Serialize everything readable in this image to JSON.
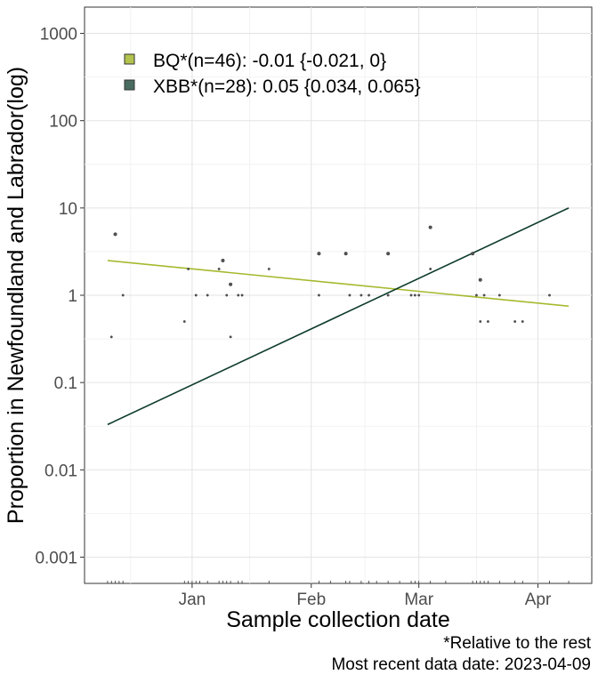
{
  "chart_data": {
    "type": "scatter",
    "title": "",
    "xlabel": "Sample collection date",
    "ylabel": "Proportion in Newfoundland and Labrador(log)",
    "y_scale": "log",
    "ylim": [
      0.0005,
      2000
    ],
    "xlim": [
      "2022-12-04",
      "2023-04-15"
    ],
    "x_ticks": [
      {
        "date": "2023-01-01",
        "label": "Jan"
      },
      {
        "date": "2023-02-01",
        "label": "Feb"
      },
      {
        "date": "2023-03-01",
        "label": "Mar"
      },
      {
        "date": "2023-04-01",
        "label": "Apr"
      }
    ],
    "y_ticks": [
      {
        "value": 0.001,
        "label": "0.001"
      },
      {
        "value": 0.01,
        "label": "0.01"
      },
      {
        "value": 0.1,
        "label": "0.1"
      },
      {
        "value": 1,
        "label": "1"
      },
      {
        "value": 10,
        "label": "10"
      },
      {
        "value": 100,
        "label": "100"
      },
      {
        "value": 1000,
        "label": "1000"
      }
    ],
    "grid": true,
    "legend_position": "top-left",
    "series": [
      {
        "name": "BQ*(n=46): -0.01 {-0.021, 0}",
        "color": "#a6b92e",
        "fit_line": [
          {
            "x": "2022-12-10",
            "y": 2.5
          },
          {
            "x": "2023-04-09",
            "y": 0.75
          }
        ]
      },
      {
        "name": "XBB*(n=28): 0.05 {0.034, 0.065}",
        "color": "#0d3b2c",
        "fit_line": [
          {
            "x": "2022-12-10",
            "y": 0.033
          },
          {
            "x": "2023-04-09",
            "y": 10
          }
        ]
      }
    ],
    "points": [
      {
        "x": "2022-12-11",
        "y": 0.333
      },
      {
        "x": "2022-12-12",
        "y": 5
      },
      {
        "x": "2022-12-14",
        "y": 1
      },
      {
        "x": "2022-12-30",
        "y": 0.5
      },
      {
        "x": "2022-12-31",
        "y": 2
      },
      {
        "x": "2023-01-02",
        "y": 1
      },
      {
        "x": "2023-01-05",
        "y": 1
      },
      {
        "x": "2023-01-08",
        "y": 2
      },
      {
        "x": "2023-01-09",
        "y": 2.5
      },
      {
        "x": "2023-01-10",
        "y": 1
      },
      {
        "x": "2023-01-11",
        "y": 0.333
      },
      {
        "x": "2023-01-11",
        "y": 1.333
      },
      {
        "x": "2023-01-13",
        "y": 1
      },
      {
        "x": "2023-01-14",
        "y": 1
      },
      {
        "x": "2023-01-21",
        "y": 2
      },
      {
        "x": "2023-02-03",
        "y": 3
      },
      {
        "x": "2023-02-03",
        "y": 1
      },
      {
        "x": "2023-02-10",
        "y": 3
      },
      {
        "x": "2023-02-11",
        "y": 1
      },
      {
        "x": "2023-02-14",
        "y": 1
      },
      {
        "x": "2023-02-16",
        "y": 1
      },
      {
        "x": "2023-02-21",
        "y": 3
      },
      {
        "x": "2023-02-21",
        "y": 1
      },
      {
        "x": "2023-02-27",
        "y": 1
      },
      {
        "x": "2023-02-28",
        "y": 1
      },
      {
        "x": "2023-03-01",
        "y": 1
      },
      {
        "x": "2023-03-04",
        "y": 6
      },
      {
        "x": "2023-03-04",
        "y": 2
      },
      {
        "x": "2023-03-15",
        "y": 3
      },
      {
        "x": "2023-03-16",
        "y": 1
      },
      {
        "x": "2023-03-17",
        "y": 1.5
      },
      {
        "x": "2023-03-17",
        "y": 0.5
      },
      {
        "x": "2023-03-18",
        "y": 1
      },
      {
        "x": "2023-03-19",
        "y": 0.5
      },
      {
        "x": "2023-03-22",
        "y": 1
      },
      {
        "x": "2023-03-26",
        "y": 0.5
      },
      {
        "x": "2023-03-28",
        "y": 0.5
      },
      {
        "x": "2023-04-04",
        "y": 1
      }
    ],
    "rug_dates": [
      "2022-12-10",
      "2022-12-11",
      "2022-12-12",
      "2022-12-13",
      "2022-12-14",
      "2022-12-30",
      "2022-12-31",
      "2023-01-01",
      "2023-01-02",
      "2023-01-03",
      "2023-01-05",
      "2023-01-08",
      "2023-01-09",
      "2023-01-10",
      "2023-01-11",
      "2023-01-13",
      "2023-01-14",
      "2023-01-21",
      "2023-02-03",
      "2023-02-06",
      "2023-02-10",
      "2023-02-11",
      "2023-02-14",
      "2023-02-16",
      "2023-02-18",
      "2023-02-21",
      "2023-02-24",
      "2023-02-27",
      "2023-02-28",
      "2023-03-01",
      "2023-03-04",
      "2023-03-08",
      "2023-03-15",
      "2023-03-16",
      "2023-03-17",
      "2023-03-18",
      "2023-03-19",
      "2023-03-22",
      "2023-03-26",
      "2023-03-28",
      "2023-04-04",
      "2023-04-09"
    ]
  },
  "captions": {
    "relative_note": "*Relative to the rest",
    "recent_date": "Most recent data date: 2023-04-09"
  }
}
